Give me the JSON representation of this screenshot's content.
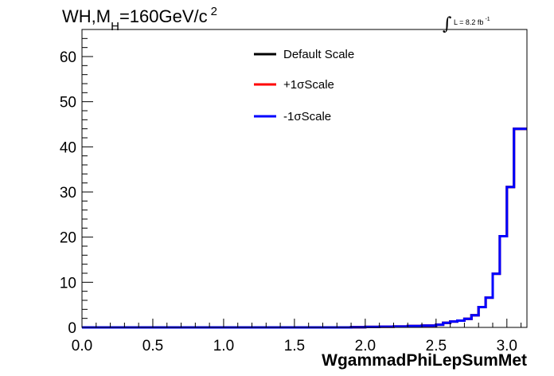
{
  "chart_data": {
    "type": "line",
    "title_main": "WH,M",
    "title_sub": "H",
    "title_rest": "=160GeV/c",
    "title_sup": "2",
    "lumi_label": "L = 8.2 fb",
    "lumi_sup": "-1",
    "xlabel": "WgammadPhiLepSumMet",
    "ylabel": "",
    "xlim": [
      0.0,
      3.1416
    ],
    "ylim": [
      0,
      66
    ],
    "x_ticks": [
      "0.0",
      "0.5",
      "1.0",
      "1.5",
      "2.0",
      "2.5",
      "3.0"
    ],
    "y_ticks": [
      "0",
      "10",
      "20",
      "30",
      "40",
      "50",
      "60"
    ],
    "legend_position": "top-center",
    "bin_edges": [
      0.0,
      0.1,
      0.2,
      0.3,
      0.4,
      0.5,
      0.6,
      0.7,
      0.8,
      0.9,
      1.0,
      1.1,
      1.2,
      1.3,
      1.4,
      1.5,
      1.6,
      1.7,
      1.8,
      1.9,
      2.0,
      2.1,
      2.2,
      2.3,
      2.4,
      2.5,
      2.55,
      2.6,
      2.65,
      2.7,
      2.75,
      2.8,
      2.85,
      2.9,
      2.95,
      3.0,
      3.05,
      3.1,
      3.1416
    ],
    "series": [
      {
        "name": "Default Scale",
        "color": "#000000",
        "values": [
          0,
          0,
          0,
          0,
          0,
          0,
          0,
          0,
          0,
          0,
          0,
          0,
          0,
          0,
          0,
          0,
          0,
          0,
          0,
          0.05,
          0.1,
          0.15,
          0.2,
          0.3,
          0.4,
          0.6,
          1.0,
          1.3,
          1.5,
          1.9,
          2.7,
          4.5,
          6.6,
          11.9,
          20.2,
          31.1,
          44.0,
          44.0
        ]
      },
      {
        "name": "+1σScale",
        "color": "#ff0000",
        "values": [
          0,
          0,
          0,
          0,
          0,
          0,
          0,
          0,
          0,
          0,
          0,
          0,
          0,
          0,
          0,
          0,
          0,
          0,
          0,
          0.05,
          0.1,
          0.15,
          0.2,
          0.3,
          0.4,
          0.6,
          1.0,
          1.3,
          1.5,
          1.9,
          2.7,
          4.5,
          6.6,
          11.9,
          20.2,
          31.1,
          44.0,
          44.0
        ]
      },
      {
        "name": "-1σScale",
        "color": "#0000ff",
        "values": [
          0,
          0,
          0,
          0,
          0,
          0,
          0,
          0,
          0,
          0,
          0,
          0,
          0,
          0,
          0,
          0,
          0,
          0,
          0,
          0.05,
          0.1,
          0.15,
          0.2,
          0.3,
          0.4,
          0.6,
          1.0,
          1.3,
          1.5,
          1.9,
          2.7,
          4.5,
          6.6,
          11.9,
          20.2,
          31.1,
          44.0,
          44.0
        ]
      }
    ]
  }
}
